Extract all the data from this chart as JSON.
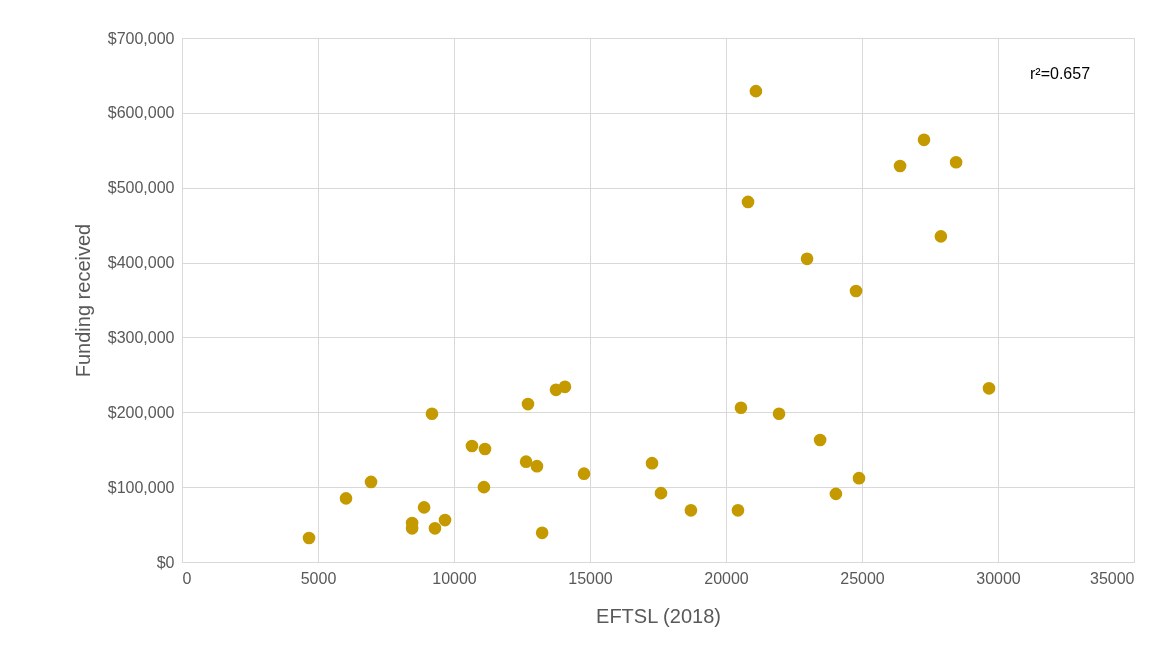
{
  "chart_data": {
    "type": "scatter",
    "xlabel": "EFTSL (2018)",
    "ylabel": "Funding received",
    "annotations": [
      "r²=0.657"
    ],
    "x": [
      4670,
      6030,
      6950,
      8460,
      8460,
      8900,
      9190,
      9300,
      9670,
      10660,
      11140,
      11100,
      12650,
      12720,
      13050,
      13240,
      13750,
      14080,
      14780,
      17280,
      17610,
      18710,
      20440,
      20550,
      20810,
      21100,
      21950,
      22980,
      23460,
      24040,
      24780,
      24890,
      26400,
      27280,
      27900,
      28460,
      29670
    ],
    "series": [
      {
        "color": "#c49a00",
        "values": [
          32000,
          85000,
          107000,
          52000,
          45000,
          73000,
          198000,
          45000,
          56000,
          155000,
          151000,
          100000,
          134000,
          211000,
          128000,
          39000,
          230000,
          234000,
          118000,
          132000,
          92000,
          69000,
          69000,
          206000,
          481000,
          629000,
          198000,
          405000,
          163000,
          91000,
          362000,
          112000,
          529000,
          564000,
          435000,
          534000,
          232000
        ]
      }
    ],
    "xlim": [
      0,
      35000
    ],
    "xticks": [
      0,
      5000,
      10000,
      15000,
      20000,
      25000,
      30000,
      35000
    ],
    "ylim": [
      0,
      700000
    ],
    "yticks": [
      {
        "value": 0,
        "label": "$0"
      },
      {
        "value": 100000,
        "label": "$100,000"
      },
      {
        "value": 200000,
        "label": "$200,000"
      },
      {
        "value": 300000,
        "label": "$300,000"
      },
      {
        "value": 400000,
        "label": "$400,000"
      },
      {
        "value": 500000,
        "label": "$500,000"
      },
      {
        "value": 600000,
        "label": "$600,000"
      },
      {
        "value": 700000,
        "label": "$700,000"
      }
    ],
    "grid": true,
    "marker": "circle"
  }
}
